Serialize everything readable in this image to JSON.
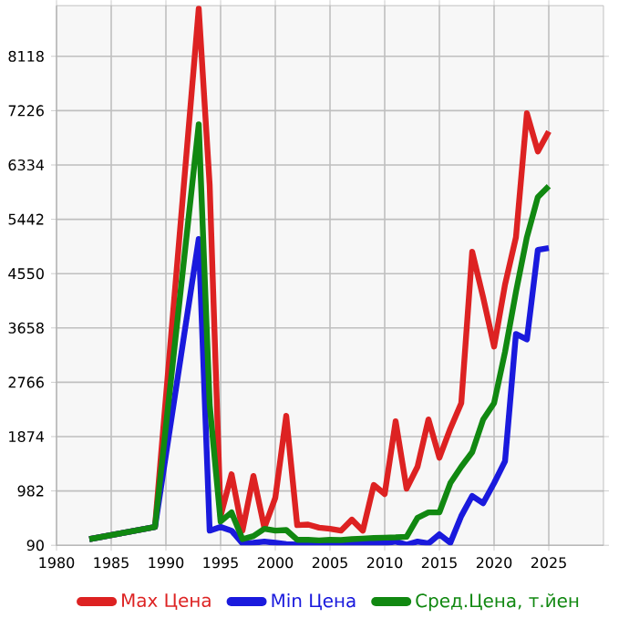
{
  "chart_data": {
    "type": "line",
    "x": [
      1983,
      1989,
      1993,
      1994,
      1995,
      1996,
      1997,
      1998,
      1999,
      2000,
      2001,
      2002,
      2003,
      2004,
      2005,
      2006,
      2007,
      2008,
      2009,
      2010,
      2011,
      2012,
      2013,
      2014,
      2015,
      2016,
      2017,
      2018,
      2019,
      2020,
      2021,
      2022,
      2023,
      2024,
      2025
    ],
    "series": [
      {
        "name": "Max Цена",
        "color": "#dd2222",
        "values": [
          190,
          390,
          8900,
          6000,
          570,
          1257,
          330,
          1227,
          377,
          870,
          2215,
          420,
          430,
          380,
          360,
          330,
          510,
          330,
          1080,
          930,
          2125,
          1020,
          1380,
          2155,
          1527,
          2006,
          2425,
          4909,
          4160,
          3352,
          4370,
          5148,
          7183,
          6555,
          6884
        ]
      },
      {
        "name": "Min Цена",
        "color": "#1a1add",
        "values": [
          190,
          390,
          5120,
          330,
          390,
          330,
          120,
          130,
          150,
          130,
          110,
          100,
          100,
          100,
          120,
          120,
          120,
          120,
          120,
          120,
          150,
          100,
          150,
          120,
          270,
          130,
          570,
          900,
          780,
          1110,
          1470,
          3560,
          3470,
          4940,
          4970
        ]
      },
      {
        "name": "Сред.Цена, т.йен",
        "color": "#118811",
        "values": [
          190,
          390,
          7000,
          2400,
          480,
          630,
          190,
          240,
          360,
          330,
          340,
          180,
          180,
          170,
          180,
          175,
          190,
          200,
          210,
          215,
          220,
          230,
          540,
          630,
          630,
          1110,
          1380,
          1620,
          2155,
          2425,
          3263,
          4250,
          5148,
          5807,
          5986
        ]
      }
    ],
    "xlim": [
      1980,
      2030
    ],
    "ylim": [
      90,
      8950
    ],
    "xticks": [
      1980,
      1985,
      1990,
      1995,
      2000,
      2005,
      2010,
      2015,
      2020,
      2025
    ],
    "yticks": [
      90,
      982,
      1874,
      2766,
      3658,
      4550,
      5442,
      6334,
      7226,
      8118
    ],
    "grid": true,
    "legend": "bottom",
    "marker": "none",
    "line_style": "solid"
  }
}
